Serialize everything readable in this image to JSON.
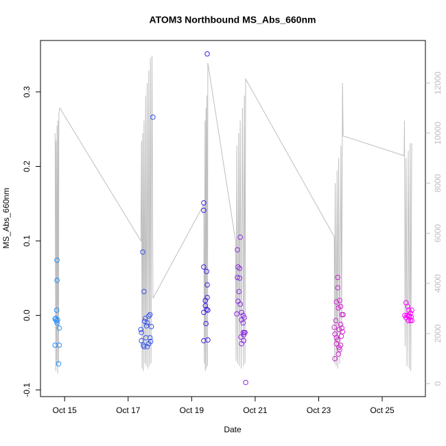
{
  "chart_data": {
    "type": "scatter",
    "title": "ATOM3 Northbound MS_Abs_660nm",
    "x_label": "Date",
    "y_label": "MS_Abs_660nm",
    "xlim": [
      14.24,
      26.36
    ],
    "xticks": [
      {
        "value": 15,
        "label": "Oct 15"
      },
      {
        "value": 17,
        "label": "Oct 17"
      },
      {
        "value": 19,
        "label": "Oct 19"
      },
      {
        "value": 21,
        "label": "Oct 21"
      },
      {
        "value": 23,
        "label": "Oct 23"
      },
      {
        "value": 25,
        "label": "Oct 25"
      }
    ],
    "ylim": [
      -0.109,
      0.369
    ],
    "yticks": [
      -0.1,
      {
        "value": 0,
        "label": "0.0"
      },
      0.1,
      0.2,
      0.3
    ],
    "y2lim": [
      -520,
      13700
    ],
    "y2ticks": [
      0,
      2000,
      4000,
      6000,
      8000,
      10000,
      12000
    ],
    "series": [
      {
        "mode": "line",
        "axis": "y2",
        "color": "#bebebe",
        "x": [
          14.7,
          14.72,
          14.73,
          14.75,
          14.76,
          14.78,
          14.79,
          14.81,
          14.82,
          14.85,
          17.4,
          17.42,
          17.44,
          17.46,
          17.48,
          17.5,
          17.53,
          17.55,
          17.57,
          17.6,
          17.62,
          17.65,
          17.67,
          17.7,
          17.72,
          17.75,
          17.78,
          19.38,
          19.4,
          19.42,
          19.43,
          19.45,
          19.46,
          19.48,
          19.5,
          19.51,
          20.38,
          20.4,
          20.42,
          20.45,
          20.48,
          20.5,
          20.53,
          20.56,
          20.6,
          20.63,
          20.66,
          20.68,
          20.7,
          23.49,
          23.5,
          23.52,
          23.55,
          23.58,
          23.6,
          23.63,
          23.66,
          23.7,
          23.72,
          23.75,
          23.77,
          25.69,
          25.7,
          25.72,
          25.75,
          25.78,
          25.82,
          25.85,
          25.88,
          25.9,
          25.93
        ],
        "values": [
          10000,
          500,
          9700,
          700,
          10300,
          400,
          10500,
          800,
          10800,
          11000,
          5700,
          9700,
          600,
          10000,
          500,
          10500,
          800,
          11500,
          700,
          12000,
          600,
          12500,
          700,
          13000,
          800,
          13100,
          3400,
          7150,
          800,
          10500,
          500,
          11000,
          600,
          11500,
          700,
          12800,
          5720,
          900,
          9500,
          800,
          10000,
          700,
          10500,
          600,
          11000,
          700,
          11500,
          800,
          12160,
          5860,
          800,
          8000,
          700,
          8500,
          600,
          9000,
          800,
          9500,
          2000,
          12000,
          9890,
          9100,
          10500,
          1500,
          9000,
          700,
          9300,
          600,
          9600,
          500,
          9600
        ]
      },
      {
        "mode": "points",
        "color": "#1e90ff",
        "x": [
          14.7,
          14.72,
          14.74,
          14.76,
          14.78,
          14.75,
          14.76,
          14.76,
          14.7,
          14.83,
          14.81,
          14.83
        ],
        "values": [
          -0.005,
          -0.004,
          -0.007,
          -0.01,
          -0.006,
          0.007,
          0.074,
          0.047,
          -0.04,
          -0.04,
          -0.065,
          -0.017
        ]
      },
      {
        "mode": "points",
        "color": "#2f4fe8",
        "x": [
          17.46,
          17.5,
          17.78,
          17.4,
          17.42,
          17.42,
          17.48,
          17.52,
          17.54,
          17.58,
          17.6,
          17.65,
          17.69,
          17.73,
          17.56,
          17.65,
          17.69,
          17.71,
          17.5,
          17.6
        ],
        "values": [
          0.085,
          0.032,
          0.266,
          -0.019,
          -0.023,
          -0.034,
          -0.04,
          -0.008,
          -0.004,
          -0.014,
          -0.01,
          -0.001,
          0.001,
          -0.015,
          -0.03,
          -0.038,
          -0.03,
          -0.035,
          -0.042,
          -0.042
        ]
      },
      {
        "mode": "points",
        "color": "#3a1ee8",
        "x": [
          19.49,
          19.38,
          19.38,
          19.38,
          19.47,
          19.49,
          19.49,
          19.43,
          19.43,
          19.47,
          19.51,
          19.38,
          19.45,
          19.38,
          19.51
        ],
        "values": [
          0.351,
          0.151,
          0.141,
          0.065,
          0.059,
          0.041,
          0.024,
          0.02,
          0.013,
          0.008,
          0.007,
          0.004,
          -0.011,
          -0.034,
          -0.033
        ]
      },
      {
        "mode": "points",
        "color": "#8a2be2",
        "x": [
          20.44,
          20.53,
          20.46,
          20.51,
          20.44,
          20.51,
          20.49,
          20.46,
          20.53,
          20.57,
          20.42,
          20.62,
          20.66,
          20.57,
          20.62,
          20.55,
          20.64,
          20.62,
          20.66,
          20.68,
          20.57,
          20.64,
          20.7
        ],
        "values": [
          0.088,
          0.105,
          0.065,
          0.063,
          0.051,
          0.05,
          0.032,
          0.019,
          0.015,
          0.004,
          0.002,
          0.0,
          -0.003,
          -0.006,
          -0.01,
          -0.029,
          -0.026,
          -0.023,
          -0.023,
          -0.023,
          -0.038,
          -0.034,
          -0.09
        ]
      },
      {
        "mode": "points",
        "color": "#cc22cc",
        "x": [
          23.6,
          23.6,
          23.56,
          23.66,
          23.62,
          23.69,
          23.54,
          23.49,
          23.51,
          23.56,
          23.64,
          23.73,
          23.75,
          23.71,
          23.77,
          23.73,
          23.51,
          23.62,
          23.69,
          23.6,
          23.56,
          23.64,
          23.66,
          23.69
        ],
        "values": [
          0.051,
          0.037,
          0.018,
          0.02,
          0.01,
          0.012,
          -0.007,
          -0.016,
          -0.025,
          -0.03,
          -0.019,
          -0.017,
          -0.022,
          -0.028,
          0.001,
          0.001,
          -0.058,
          -0.052,
          -0.04,
          -0.033,
          -0.038,
          -0.043,
          -0.046,
          -0.012
        ]
      },
      {
        "mode": "points",
        "color": "#ff00ff",
        "x": [
          25.75,
          25.8,
          25.84,
          25.89,
          25.93,
          25.71,
          25.78,
          25.82,
          25.86,
          25.91,
          25.82,
          25.89,
          25.93,
          25.75
        ],
        "values": [
          0.017,
          0.012,
          0.007,
          0.003,
          0.007,
          0.0,
          0.0,
          -0.001,
          -0.001,
          -0.002,
          -0.007,
          -0.007,
          -0.007,
          -0.003
        ]
      }
    ]
  }
}
